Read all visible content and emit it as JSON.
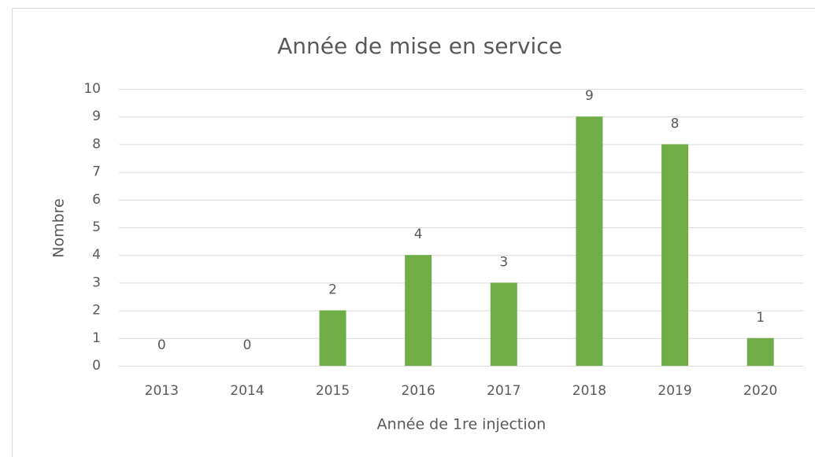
{
  "chart_data": {
    "type": "bar",
    "title": "Année de mise en service",
    "x_label": "Année de 1re injection",
    "y_label": "Nombre",
    "categories": [
      "2013",
      "2014",
      "2015",
      "2016",
      "2017",
      "2018",
      "2019",
      "2020"
    ],
    "values": [
      0,
      0,
      2,
      4,
      3,
      9,
      8,
      1
    ],
    "color": "#70ad47",
    "ylim": [
      0,
      10
    ],
    "yticks": [
      0,
      1,
      2,
      3,
      4,
      5,
      6,
      7,
      8,
      9,
      10
    ],
    "grid": true,
    "data_labels": true
  }
}
